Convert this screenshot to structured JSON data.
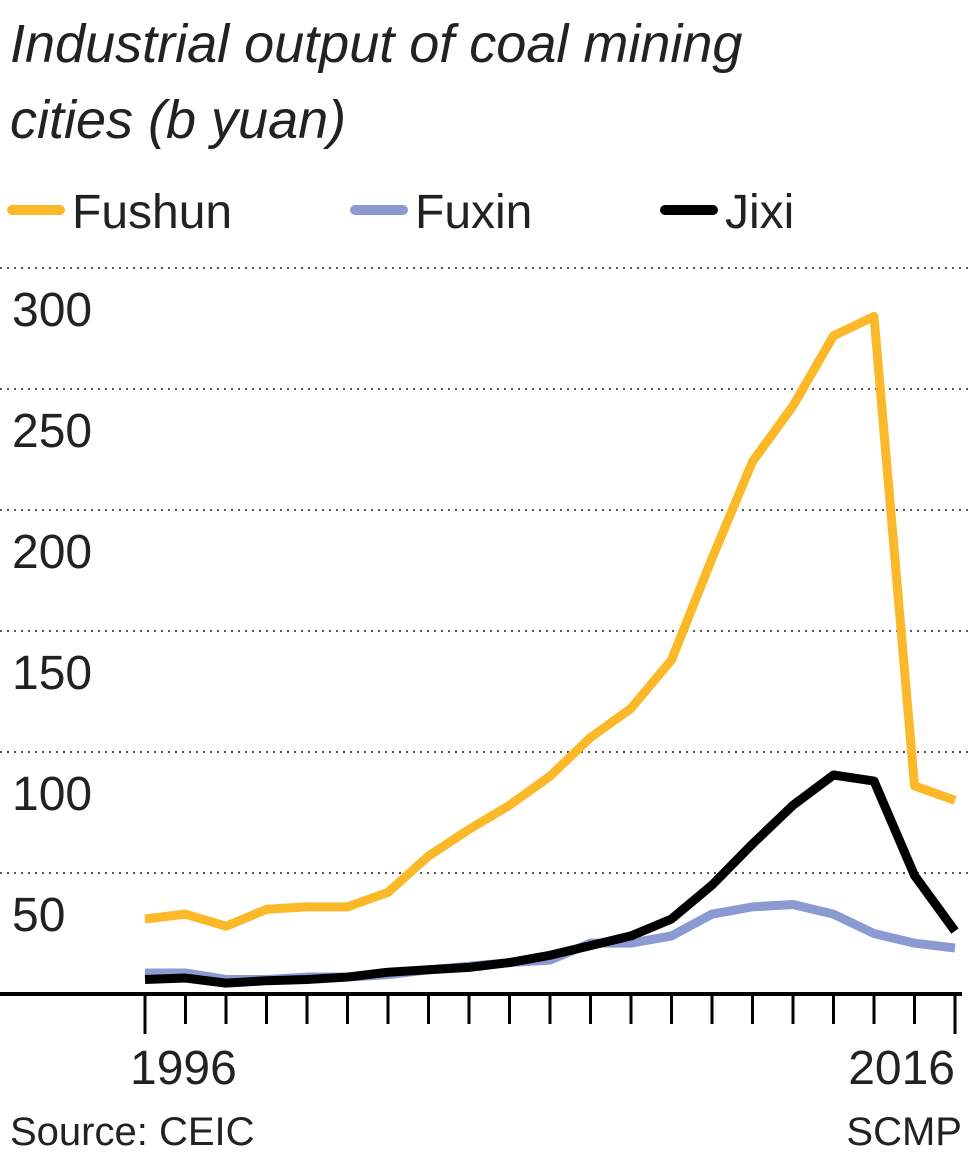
{
  "chart_data": {
    "type": "line",
    "title": [
      "Industrial output of coal mining",
      "cities (b yuan)"
    ],
    "x": [
      1996,
      1997,
      1998,
      1999,
      2000,
      2001,
      2002,
      2003,
      2004,
      2005,
      2006,
      2007,
      2008,
      2009,
      2010,
      2011,
      2012,
      2013,
      2014,
      2015,
      2016
    ],
    "series": [
      {
        "name": "Fushun",
        "color": "#fbb829",
        "values": [
          31,
          33,
          28,
          35,
          36,
          36,
          42,
          57,
          68,
          78,
          90,
          106,
          118,
          138,
          180,
          220,
          243,
          272,
          280,
          86,
          80
        ]
      },
      {
        "name": "Fuxin",
        "color": "#8b9bd1",
        "values": [
          8.7,
          8.7,
          6,
          6,
          7,
          7,
          8,
          10,
          11.5,
          13,
          14,
          21,
          21,
          24,
          33,
          36,
          37,
          33,
          25,
          21,
          19
        ]
      },
      {
        "name": "Jixi",
        "color": "#000000",
        "values": [
          6,
          6.6,
          4.5,
          5.5,
          6,
          7,
          9,
          10,
          11,
          13,
          16,
          20,
          24,
          31,
          45,
          62,
          78,
          90.5,
          88,
          49,
          26
        ]
      }
    ],
    "xlim": [
      1996,
      2016
    ],
    "xticks": [
      1996,
      2016
    ],
    "ylim": [
      0,
      300
    ],
    "yticks": [
      50,
      100,
      150,
      200,
      250,
      300
    ],
    "grid": true,
    "source": "Source: CEIC",
    "credit": "SCMP"
  }
}
